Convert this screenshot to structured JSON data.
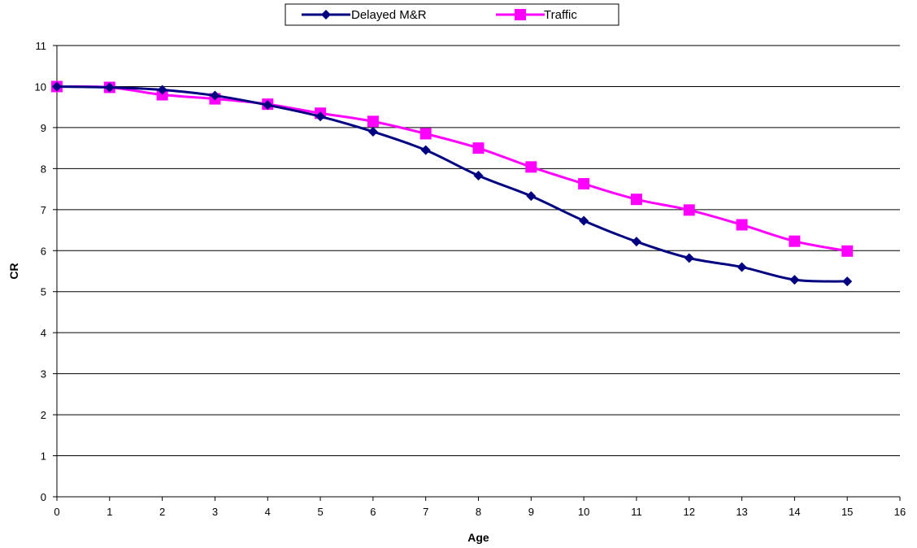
{
  "chart_data": {
    "type": "line",
    "title": "",
    "xlabel": "Age",
    "ylabel": "CR",
    "xlim": [
      0,
      16
    ],
    "ylim": [
      0,
      11
    ],
    "x_ticks": [
      0,
      1,
      2,
      3,
      4,
      5,
      6,
      7,
      8,
      9,
      10,
      11,
      12,
      13,
      14,
      15,
      16
    ],
    "y_ticks": [
      0,
      1,
      2,
      3,
      4,
      5,
      6,
      7,
      8,
      9,
      10,
      11
    ],
    "grid": "horizontal",
    "legend_position": "top-center",
    "series": [
      {
        "name": "Delayed M&R",
        "color": "#000080",
        "marker": "diamond",
        "x": [
          0,
          1,
          2,
          3,
          4,
          5,
          6,
          7,
          8,
          9,
          10,
          11,
          12,
          13,
          14,
          15
        ],
        "values": [
          10.0,
          9.98,
          9.92,
          9.78,
          9.55,
          9.27,
          8.9,
          8.45,
          7.83,
          7.33,
          6.73,
          6.22,
          5.82,
          5.6,
          5.29,
          5.25
        ]
      },
      {
        "name": "Traffic",
        "color": "#FF00FF",
        "marker": "square",
        "x": [
          0,
          1,
          2,
          3,
          4,
          5,
          6,
          7,
          8,
          9,
          10,
          11,
          12,
          13,
          14,
          15
        ],
        "values": [
          10.0,
          9.98,
          9.8,
          9.7,
          9.57,
          9.35,
          9.15,
          8.85,
          8.5,
          8.04,
          7.63,
          7.25,
          6.99,
          6.63,
          6.23,
          5.99
        ]
      }
    ]
  }
}
